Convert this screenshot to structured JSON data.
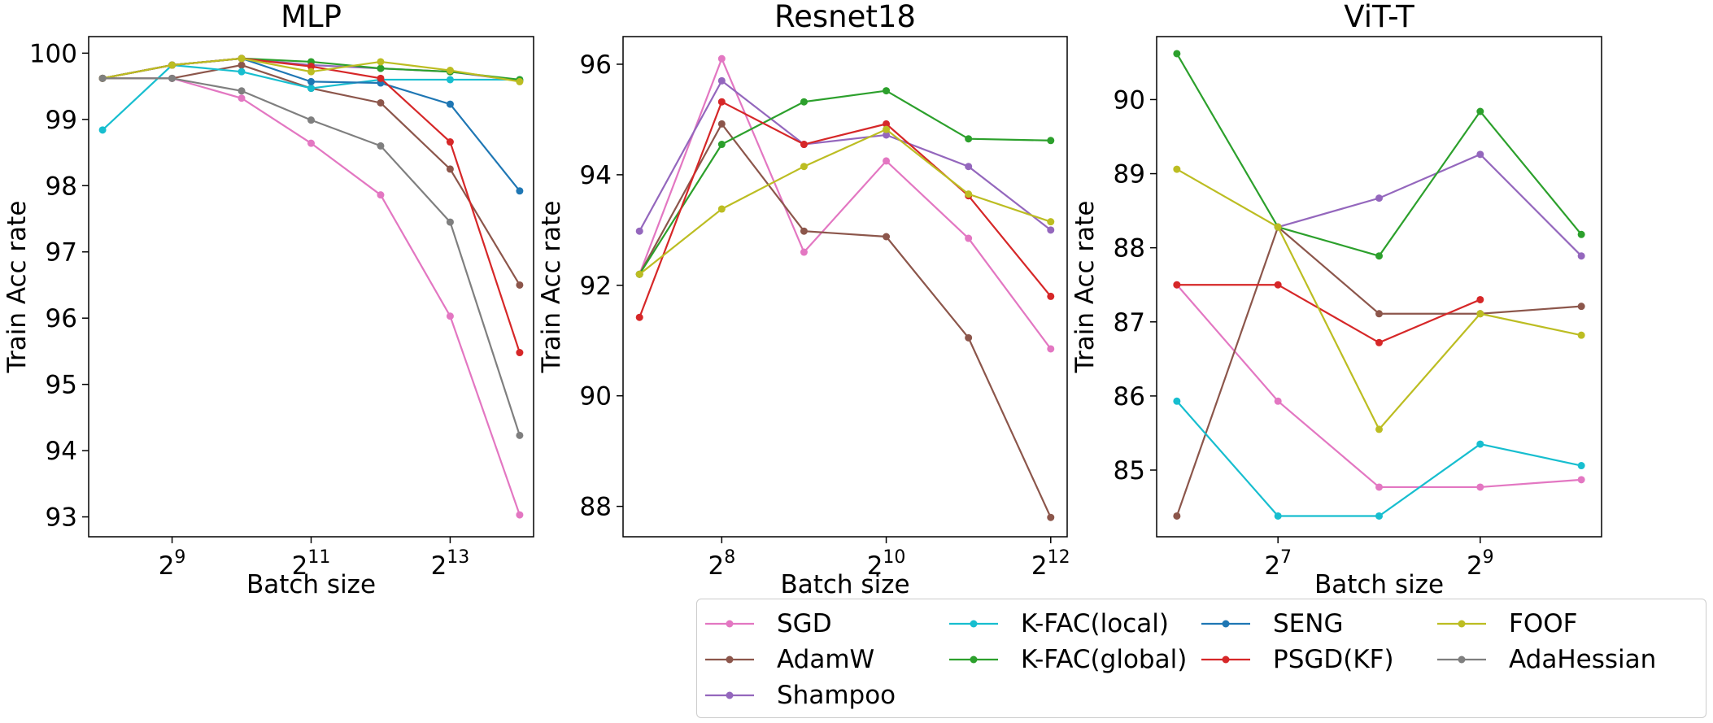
{
  "colors": {
    "SGD": "#e377c2",
    "AdamW": "#8c564b",
    "Shampoo": "#9467bd",
    "K-FAC(local)": "#17becf",
    "K-FAC(global)": "#2ca02c",
    "SENG": "#1f77b4",
    "PSGD(KF)": "#d62728",
    "FOOF": "#bcbd22",
    "AdaHessian": "#7f7f7f"
  },
  "legend": {
    "columns": [
      [
        "SGD",
        "AdamW",
        "Shampoo"
      ],
      [
        "K-FAC(local)",
        "K-FAC(global)"
      ],
      [
        "SENG",
        "PSGD(KF)"
      ],
      [
        "FOOF",
        "AdaHessian"
      ]
    ]
  },
  "chart_data": [
    {
      "type": "line",
      "title": "MLP",
      "xlabel": "Batch size",
      "ylabel": "Train Acc rate",
      "x_scale": "log2",
      "xlim_log2": [
        7.8,
        14.2
      ],
      "ylim": [
        92.7,
        100.25
      ],
      "xticks": [
        {
          "exp": 9,
          "base": "2",
          "sup": "9"
        },
        {
          "exp": 11,
          "base": "2",
          "sup": "11"
        },
        {
          "exp": 13,
          "base": "2",
          "sup": "13"
        }
      ],
      "yticks": [
        93,
        94,
        95,
        96,
        97,
        98,
        99,
        100
      ],
      "x": [
        256,
        512,
        1024,
        2048,
        4096,
        8192,
        16384
      ],
      "series": [
        {
          "name": "SGD",
          "values": [
            99.62,
            99.62,
            99.32,
            98.64,
            97.86,
            96.03,
            93.03
          ]
        },
        {
          "name": "AdamW",
          "values": [
            99.62,
            99.62,
            99.82,
            99.47,
            99.25,
            98.25,
            96.5
          ]
        },
        {
          "name": "Shampoo",
          "values": [
            99.62,
            99.82,
            99.92,
            99.82,
            99.77,
            99.72,
            99.58
          ]
        },
        {
          "name": "K-FAC(local)",
          "values": [
            98.84,
            99.82,
            99.72,
            99.47,
            99.6,
            99.6,
            99.6
          ]
        },
        {
          "name": "K-FAC(global)",
          "values": [
            99.62,
            99.82,
            99.92,
            99.87,
            99.77,
            99.72,
            99.6
          ]
        },
        {
          "name": "SENG",
          "values": [
            99.62,
            99.82,
            99.92,
            99.57,
            99.55,
            99.23,
            97.92
          ]
        },
        {
          "name": "PSGD(KF)",
          "values": [
            99.62,
            99.82,
            99.92,
            99.8,
            99.62,
            98.66,
            95.48
          ]
        },
        {
          "name": "FOOF",
          "values": [
            99.62,
            99.82,
            99.92,
            99.72,
            99.87,
            99.74,
            99.57
          ]
        },
        {
          "name": "AdaHessian",
          "values": [
            99.62,
            99.62,
            99.43,
            98.99,
            98.6,
            97.45,
            94.23
          ]
        }
      ]
    },
    {
      "type": "line",
      "title": "Resnet18",
      "xlabel": "Batch size",
      "ylabel": "Train Acc rate",
      "x_scale": "log2",
      "xlim_log2": [
        6.8,
        12.2
      ],
      "ylim": [
        87.45,
        96.5
      ],
      "xticks": [
        {
          "exp": 8,
          "base": "2",
          "sup": "8"
        },
        {
          "exp": 10,
          "base": "2",
          "sup": "10"
        },
        {
          "exp": 12,
          "base": "2",
          "sup": "12"
        }
      ],
      "yticks": [
        88,
        90,
        92,
        94,
        96
      ],
      "x": [
        128,
        256,
        512,
        1024,
        2048,
        4096
      ],
      "series": [
        {
          "name": "SGD",
          "values": [
            92.2,
            96.1,
            92.6,
            94.25,
            92.85,
            90.85
          ]
        },
        {
          "name": "AdamW",
          "values": [
            92.2,
            94.92,
            92.98,
            92.88,
            91.05,
            87.8
          ]
        },
        {
          "name": "Shampoo",
          "values": [
            92.98,
            95.7,
            94.55,
            94.72,
            94.15,
            93.0
          ]
        },
        {
          "name": "K-FAC(global)",
          "values": [
            92.2,
            94.55,
            95.32,
            95.52,
            94.65,
            94.62
          ]
        },
        {
          "name": "PSGD(KF)",
          "values": [
            91.42,
            95.32,
            94.55,
            94.92,
            93.62,
            91.8
          ]
        },
        {
          "name": "FOOF",
          "values": [
            92.2,
            93.38,
            94.15,
            94.82,
            93.65,
            93.15
          ]
        }
      ]
    },
    {
      "type": "line",
      "title": "ViT-T",
      "xlabel": "Batch size",
      "ylabel": "Train Acc rate",
      "x_scale": "log2",
      "xlim_log2": [
        5.8,
        10.2
      ],
      "ylim": [
        84.1,
        90.85
      ],
      "xticks": [
        {
          "exp": 7,
          "base": "2",
          "sup": "7"
        },
        {
          "exp": 9,
          "base": "2",
          "sup": "9"
        }
      ],
      "yticks": [
        85,
        86,
        87,
        88,
        89,
        90
      ],
      "x": [
        64,
        128,
        256,
        512,
        1024
      ],
      "series": [
        {
          "name": "SGD",
          "values": [
            87.5,
            85.93,
            84.77,
            84.77,
            84.87
          ]
        },
        {
          "name": "AdamW",
          "values": [
            84.38,
            88.28,
            87.11,
            87.11,
            87.21
          ]
        },
        {
          "name": "Shampoo",
          "values": [
            null,
            88.28,
            88.67,
            89.26,
            87.89
          ]
        },
        {
          "name": "K-FAC(local)",
          "values": [
            85.93,
            84.38,
            84.38,
            85.35,
            85.06
          ]
        },
        {
          "name": "K-FAC(global)",
          "values": [
            90.62,
            88.28,
            87.89,
            89.84,
            88.18
          ]
        },
        {
          "name": "PSGD(KF)",
          "values": [
            87.5,
            87.5,
            86.72,
            87.3,
            null
          ]
        },
        {
          "name": "FOOF",
          "values": [
            89.06,
            88.28,
            85.55,
            87.11,
            86.82
          ]
        }
      ]
    }
  ]
}
